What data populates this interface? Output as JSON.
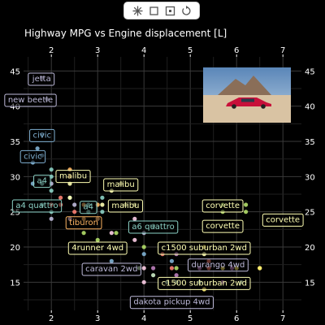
{
  "toolbar": {
    "icons": [
      "crosshair-icon",
      "crop-icon",
      "focus-square-icon",
      "reset-icon"
    ]
  },
  "chart_data": {
    "type": "scatter",
    "title": "Highway MPG vs Engine displacement [L]",
    "xlabel": "",
    "ylabel": "",
    "xlim": [
      1.4,
      7.4
    ],
    "ylim": [
      11,
      47
    ],
    "xticks": [
      2,
      3,
      4,
      5,
      6,
      7
    ],
    "yticks": [
      15,
      20,
      25,
      30,
      35,
      40,
      45
    ],
    "grid": true,
    "inset_image": "red lowrider car parked in desert landscape with mountains",
    "points": [
      {
        "x": 1.8,
        "y": 29,
        "color": "#8dd3c7"
      },
      {
        "x": 1.8,
        "y": 29,
        "color": "#8dd3c7"
      },
      {
        "x": 2.0,
        "y": 31,
        "color": "#8dd3c7"
      },
      {
        "x": 2.0,
        "y": 30,
        "color": "#8dd3c7"
      },
      {
        "x": 2.8,
        "y": 26,
        "color": "#8dd3c7"
      },
      {
        "x": 2.8,
        "y": 26,
        "color": "#8dd3c7"
      },
      {
        "x": 3.1,
        "y": 27,
        "color": "#8dd3c7"
      },
      {
        "x": 1.8,
        "y": 26,
        "color": "#8dd3c7"
      },
      {
        "x": 2.0,
        "y": 25,
        "color": "#8dd3c7"
      },
      {
        "x": 2.0,
        "y": 28,
        "color": "#8dd3c7"
      },
      {
        "x": 2.8,
        "y": 25,
        "color": "#8dd3c7"
      },
      {
        "x": 3.1,
        "y": 25,
        "color": "#8dd3c7"
      },
      {
        "x": 4.2,
        "y": 23,
        "color": "#8dd3c7"
      },
      {
        "x": 1.8,
        "y": 44,
        "color": "#bebada"
      },
      {
        "x": 1.9,
        "y": 41,
        "color": "#bebada"
      },
      {
        "x": 2.0,
        "y": 29,
        "color": "#bebada"
      },
      {
        "x": 2.5,
        "y": 26,
        "color": "#bebada"
      },
      {
        "x": 1.8,
        "y": 33,
        "color": "#80b1d3"
      },
      {
        "x": 1.8,
        "y": 36,
        "color": "#80b1d3"
      },
      {
        "x": 1.8,
        "y": 36,
        "color": "#80b1d3"
      },
      {
        "x": 1.6,
        "y": 32,
        "color": "#80b1d3"
      },
      {
        "x": 1.6,
        "y": 29,
        "color": "#80b1d3"
      },
      {
        "x": 1.7,
        "y": 34,
        "color": "#80b1d3"
      },
      {
        "x": 2.4,
        "y": 27,
        "color": "#80b1d3"
      },
      {
        "x": 2.4,
        "y": 30,
        "color": "#fdb462"
      },
      {
        "x": 2.4,
        "y": 31,
        "color": "#fdb462"
      },
      {
        "x": 3.0,
        "y": 26,
        "color": "#fdb462"
      },
      {
        "x": 2.7,
        "y": 26,
        "color": "#fdb462"
      },
      {
        "x": 2.5,
        "y": 25,
        "color": "#fb8072"
      },
      {
        "x": 2.2,
        "y": 26,
        "color": "#fb8072"
      },
      {
        "x": 2.4,
        "y": 29,
        "color": "#ffffb3"
      },
      {
        "x": 2.4,
        "y": 27,
        "color": "#ffffb3"
      },
      {
        "x": 3.1,
        "y": 26,
        "color": "#ffffb3"
      },
      {
        "x": 3.5,
        "y": 29,
        "color": "#ffffb3"
      },
      {
        "x": 3.6,
        "y": 26,
        "color": "#ffffb3"
      },
      {
        "x": 3.3,
        "y": 28,
        "color": "#ffffb3"
      },
      {
        "x": 3.8,
        "y": 26,
        "color": "#ffffb3"
      },
      {
        "x": 5.7,
        "y": 26,
        "color": "#b3de69"
      },
      {
        "x": 6.2,
        "y": 26,
        "color": "#b3de69"
      },
      {
        "x": 5.7,
        "y": 25,
        "color": "#b3de69"
      },
      {
        "x": 6.2,
        "y": 25,
        "color": "#b3de69"
      },
      {
        "x": 2.7,
        "y": 22,
        "color": "#b3de69"
      },
      {
        "x": 3.4,
        "y": 22,
        "color": "#b3de69"
      },
      {
        "x": 4.0,
        "y": 20,
        "color": "#b3de69"
      },
      {
        "x": 4.7,
        "y": 17,
        "color": "#b3de69"
      },
      {
        "x": 2.4,
        "y": 24,
        "color": "#fccde5"
      },
      {
        "x": 3.0,
        "y": 24,
        "color": "#fccde5"
      },
      {
        "x": 3.3,
        "y": 22,
        "color": "#fccde5"
      },
      {
        "x": 3.8,
        "y": 21,
        "color": "#fccde5"
      },
      {
        "x": 4.0,
        "y": 17,
        "color": "#fccde5"
      },
      {
        "x": 5.3,
        "y": 20,
        "color": "#ffed6f"
      },
      {
        "x": 5.7,
        "y": 17,
        "color": "#ffed6f"
      },
      {
        "x": 6.0,
        "y": 17,
        "color": "#ffed6f"
      },
      {
        "x": 5.3,
        "y": 14,
        "color": "#ffed6f"
      },
      {
        "x": 6.5,
        "y": 17,
        "color": "#ffed6f"
      },
      {
        "x": 4.7,
        "y": 19,
        "color": "#bc80bd"
      },
      {
        "x": 5.2,
        "y": 17,
        "color": "#bc80bd"
      },
      {
        "x": 5.9,
        "y": 17,
        "color": "#bc80bd"
      },
      {
        "x": 4.7,
        "y": 16,
        "color": "#bc80bd"
      },
      {
        "x": 5.7,
        "y": 15,
        "color": "#bc80bd"
      },
      {
        "x": 3.9,
        "y": 17,
        "color": "#ccebc5"
      },
      {
        "x": 4.2,
        "y": 16,
        "color": "#ccebc5"
      },
      {
        "x": 4.5,
        "y": 15,
        "color": "#ccebc5"
      },
      {
        "x": 4.7,
        "y": 15,
        "color": "#ccebc5"
      },
      {
        "x": 5.2,
        "y": 15,
        "color": "#ccebc5"
      },
      {
        "x": 6.1,
        "y": 15,
        "color": "#ccebc5"
      },
      {
        "x": 4.6,
        "y": 17,
        "color": "#fb8072"
      },
      {
        "x": 4.4,
        "y": 19,
        "color": "#fb8072"
      },
      {
        "x": 5.4,
        "y": 17,
        "color": "#fb8072"
      },
      {
        "x": 5.4,
        "y": 18,
        "color": "#fb8072"
      },
      {
        "x": 4.0,
        "y": 19,
        "color": "#80b1d3"
      },
      {
        "x": 4.6,
        "y": 18,
        "color": "#80b1d3"
      },
      {
        "x": 3.3,
        "y": 18,
        "color": "#80b1d3"
      },
      {
        "x": 5.3,
        "y": 19,
        "color": "#ffffb3"
      },
      {
        "x": 4.0,
        "y": 22,
        "color": "#bebada"
      },
      {
        "x": 2.0,
        "y": 24,
        "color": "#bebada"
      },
      {
        "x": 2.7,
        "y": 24,
        "color": "#fdb462"
      },
      {
        "x": 3.0,
        "y": 24,
        "color": "#fdb462"
      },
      {
        "x": 4.0,
        "y": 15,
        "color": "#fccde5"
      },
      {
        "x": 3.8,
        "y": 24,
        "color": "#fccde5"
      },
      {
        "x": 6.5,
        "y": 17,
        "color": "#ffed6f"
      },
      {
        "x": 4.2,
        "y": 17,
        "color": "#bc80bd"
      },
      {
        "x": 2.0,
        "y": 26,
        "color": "#fb8072"
      },
      {
        "x": 2.2,
        "y": 27,
        "color": "#fb8072"
      },
      {
        "x": 3.0,
        "y": 21,
        "color": "#b3de69"
      }
    ],
    "labels": [
      {
        "text": "jetta",
        "x": 1.8,
        "y": 44,
        "color": "#bebada",
        "anchor": "start",
        "dx": -12
      },
      {
        "text": "new beetle",
        "x": 1.9,
        "y": 41,
        "color": "#bebada",
        "anchor": "middle",
        "dx": -20
      },
      {
        "text": "civic",
        "x": 1.8,
        "y": 36,
        "color": "#80b1d3",
        "anchor": "middle",
        "dx": 0
      },
      {
        "text": "civic",
        "x": 1.6,
        "y": 33,
        "color": "#80b1d3",
        "anchor": "middle",
        "dx": 0
      },
      {
        "text": "a4",
        "x": 1.8,
        "y": 29.5,
        "color": "#8dd3c7",
        "anchor": "middle",
        "dx": 0
      },
      {
        "text": "malibu",
        "x": 2.4,
        "y": 30.2,
        "color": "#ffffb3",
        "anchor": "middle",
        "dx": 4
      },
      {
        "text": "malibu",
        "x": 3.5,
        "y": 29,
        "color": "#ffffb3",
        "anchor": "middle",
        "dx": 0
      },
      {
        "text": "a4 quattro",
        "x": 1.9,
        "y": 26,
        "color": "#8dd3c7",
        "anchor": "middle",
        "dx": -12
      },
      {
        "text": "a4",
        "x": 2.8,
        "y": 25.8,
        "color": "#8dd3c7",
        "anchor": "middle",
        "dx": 0
      },
      {
        "text": "malibu",
        "x": 3.6,
        "y": 26,
        "color": "#ffffb3",
        "anchor": "middle",
        "dx": 0
      },
      {
        "text": "corvette",
        "x": 5.7,
        "y": 26,
        "color": "#ffffb3",
        "anchor": "middle",
        "dx": 0
      },
      {
        "text": "tiburon",
        "x": 2.7,
        "y": 23.6,
        "color": "#fdb462",
        "anchor": "middle",
        "dx": 0
      },
      {
        "text": "a6 quattro",
        "x": 4.2,
        "y": 23,
        "color": "#8dd3c7",
        "anchor": "middle",
        "dx": 0
      },
      {
        "text": "corvette",
        "x": 5.7,
        "y": 23.1,
        "color": "#ffffb3",
        "anchor": "middle",
        "dx": 0
      },
      {
        "text": "corvette",
        "x": 7.0,
        "y": 24,
        "color": "#ffffb3",
        "anchor": "middle",
        "dx": 0
      },
      {
        "text": "4runner 4wd",
        "x": 3.0,
        "y": 20,
        "color": "#ffffb3",
        "anchor": "middle",
        "dx": 0
      },
      {
        "text": "c1500 suburban 2wd",
        "x": 5.3,
        "y": 20,
        "color": "#ffffb3",
        "anchor": "middle",
        "dx": 0
      },
      {
        "text": "durango 4wd",
        "x": 5.6,
        "y": 17.6,
        "color": "#bebada",
        "anchor": "middle",
        "dx": 0
      },
      {
        "text": "caravan 2wd",
        "x": 3.3,
        "y": 17,
        "color": "#bebada",
        "anchor": "middle",
        "dx": 0
      },
      {
        "text": "c1500 suburban 2wd",
        "x": 5.3,
        "y": 15,
        "color": "#ffffb3",
        "anchor": "middle",
        "dx": 0
      },
      {
        "text": "dakota pickup 4wd",
        "x": 4.6,
        "y": 12.3,
        "color": "#bebada",
        "anchor": "middle",
        "dx": 0
      }
    ]
  }
}
